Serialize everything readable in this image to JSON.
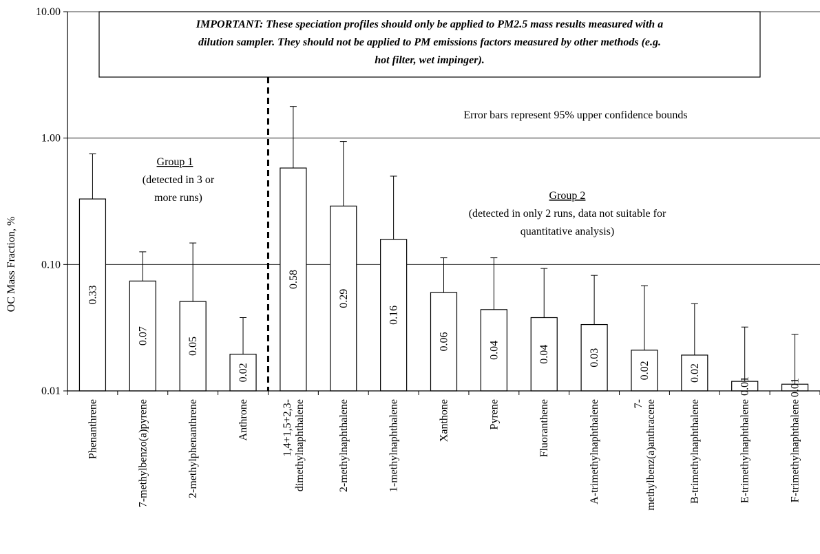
{
  "chart_data": {
    "type": "bar",
    "scale": "log",
    "ylabel": "OC Mass Fraction, %",
    "ylim": [
      0.01,
      10
    ],
    "yticks": [
      "0.01",
      "0.10",
      "1.00",
      "10.00"
    ],
    "ytick_values": [
      0.01,
      0.1,
      1,
      10
    ],
    "grid": true,
    "categories": [
      [
        "Phenanthrene"
      ],
      [
        "7-methylbenzo(a)pyrene"
      ],
      [
        "2-methylphenanthrene"
      ],
      [
        "Anthrone"
      ],
      [
        "1,4+1,5+2,3-",
        "dimethylnaphthalene"
      ],
      [
        "2-methylnaphthalene"
      ],
      [
        "1-methylnaphthalene"
      ],
      [
        "Xanthone"
      ],
      [
        "Pyrene"
      ],
      [
        "Fluoranthene"
      ],
      [
        "A-trimethylnaphthalene"
      ],
      [
        "7-",
        "methylbenz(a)anthracene"
      ],
      [
        "B-trimethylnaphthalene"
      ],
      [
        "E-trimethylnaphthalene"
      ],
      [
        "F-trimethylnaphthalene"
      ]
    ],
    "values": [
      0.33,
      0.074,
      0.051,
      0.0195,
      0.58,
      0.29,
      0.158,
      0.06,
      0.044,
      0.038,
      0.0335,
      0.021,
      0.0192,
      0.0119,
      0.0113
    ],
    "error_upper": [
      0.75,
      0.126,
      0.148,
      0.038,
      1.78,
      0.94,
      0.5,
      0.113,
      0.113,
      0.093,
      0.082,
      0.068,
      0.049,
      0.032,
      0.028
    ],
    "data_labels": [
      "0.33",
      "0.07",
      "0.05",
      "0.02",
      "0.58",
      "0.29",
      "0.16",
      "0.06",
      "0.04",
      "0.04",
      "0.03",
      "0.02",
      "0.02",
      "0.01",
      "0.01"
    ],
    "group_divider_after_index": 3,
    "annotations": {
      "group1_title": "Group 1",
      "group1_line1": "(detected in 3 or",
      "group1_line2": "more runs)",
      "group2_title": "Group 2",
      "group2_line1": "(detected in only 2 runs, data not suitable for",
      "group2_line2": "quantitative analysis)",
      "error_note": "Error bars represent 95% upper confidence bounds",
      "warning_lines": [
        "IMPORTANT:  These speciation profiles should only be applied to PM2.5 mass results measured with a",
        "dilution sampler.  They should not be applied to PM emissions factors measured by other methods (e.g.",
        "hot filter, wet impinger)."
      ]
    }
  }
}
